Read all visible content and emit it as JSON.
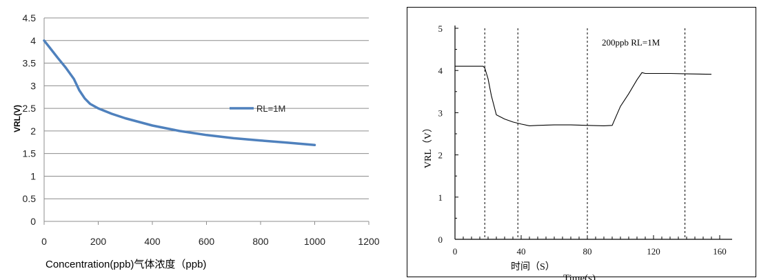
{
  "chart_data": [
    {
      "type": "line",
      "ylabel": "VRL(V)",
      "xlabel": "Concentration(ppb)气体浓度（ppb)",
      "xlim": [
        0,
        1200
      ],
      "ylim": [
        0,
        4.5
      ],
      "x_ticks": [
        "0",
        "200",
        "400",
        "600",
        "800",
        "1000",
        "1200"
      ],
      "y_ticks": [
        "0",
        "0.5",
        "1",
        "1.5",
        "2",
        "2.5",
        "3",
        "3.5",
        "4",
        "4.5"
      ],
      "grid": true,
      "legend_position": "right",
      "series": [
        {
          "name": "RL=1M",
          "color": "#4f81bd",
          "x": [
            0,
            20,
            50,
            80,
            110,
            130,
            150,
            170,
            200,
            250,
            300,
            400,
            500,
            600,
            700,
            800,
            900,
            1000
          ],
          "y": [
            4.0,
            3.85,
            3.62,
            3.4,
            3.15,
            2.9,
            2.72,
            2.6,
            2.5,
            2.38,
            2.28,
            2.12,
            2.0,
            1.91,
            1.84,
            1.79,
            1.74,
            1.69
          ]
        }
      ]
    },
    {
      "type": "line",
      "ylabel": "VRL（V）",
      "xlabel": "Time(s)",
      "xlabel_secondary": "时间（S）",
      "annotation": "200ppb RL=1M",
      "xlim": [
        0,
        165
      ],
      "ylim": [
        0,
        5
      ],
      "x_ticks": [
        "0",
        "40",
        "80",
        "120",
        "160"
      ],
      "y_ticks": [
        "0",
        "1",
        "2",
        "3",
        "4",
        "5"
      ],
      "vertical_markers": [
        18,
        38,
        80,
        139
      ],
      "series": [
        {
          "name": "200ppb RL=1M",
          "color": "#000000",
          "x": [
            0,
            17,
            18,
            20,
            22,
            25,
            30,
            35,
            40,
            45,
            50,
            60,
            70,
            80,
            90,
            95,
            100,
            105,
            110,
            113,
            115,
            120,
            130,
            140,
            155
          ],
          "y": [
            4.1,
            4.1,
            4.06,
            3.8,
            3.4,
            2.95,
            2.85,
            2.78,
            2.73,
            2.69,
            2.7,
            2.71,
            2.71,
            2.7,
            2.69,
            2.7,
            3.15,
            3.45,
            3.78,
            3.95,
            3.93,
            3.93,
            3.93,
            3.92,
            3.91
          ]
        }
      ]
    }
  ]
}
